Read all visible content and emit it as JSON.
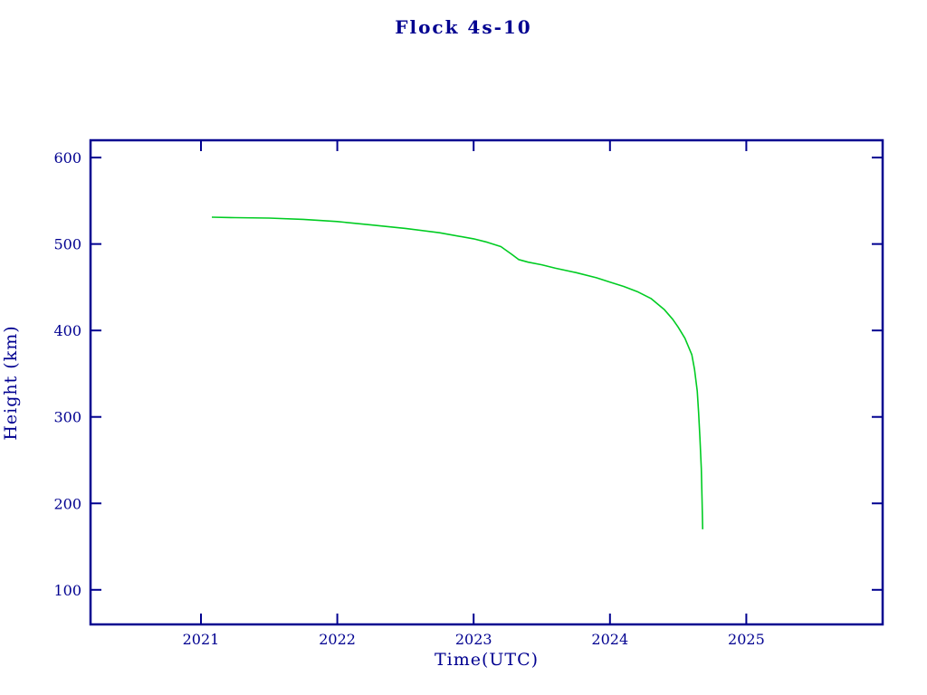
{
  "title": "Flock 4s-10",
  "colors": {
    "axis": "#000090",
    "line": "#00cc22",
    "background": "#ffffff"
  },
  "chart_data": {
    "type": "line",
    "title": "Flock 4s-10",
    "xlabel": "Time(UTC)",
    "ylabel": "Height (km)",
    "xlim": [
      2020.19,
      2026.0
    ],
    "ylim": [
      60,
      620
    ],
    "xticks": [
      2021,
      2022,
      2023,
      2024,
      2025
    ],
    "yticks": [
      100,
      200,
      300,
      400,
      500,
      600
    ],
    "grid": false,
    "legend": "none",
    "series": [
      {
        "name": "height",
        "x": [
          2021.08,
          2021.25,
          2021.5,
          2021.75,
          2022.0,
          2022.25,
          2022.5,
          2022.75,
          2023.0,
          2023.1,
          2023.2,
          2023.28,
          2023.33,
          2023.4,
          2023.5,
          2023.6,
          2023.75,
          2023.9,
          2024.0,
          2024.1,
          2024.2,
          2024.3,
          2024.4,
          2024.46,
          2024.5,
          2024.55,
          2024.6,
          2024.62,
          2024.64,
          2024.65,
          2024.66,
          2024.67,
          2024.675,
          2024.68
        ],
        "y": [
          531,
          530.5,
          530,
          528.5,
          526,
          522,
          518,
          513,
          506,
          502,
          497,
          488,
          482,
          479,
          476,
          472,
          467,
          461,
          456,
          451,
          445,
          437,
          424,
          413,
          404,
          391,
          372,
          355,
          330,
          305,
          275,
          240,
          205,
          170
        ]
      }
    ]
  }
}
